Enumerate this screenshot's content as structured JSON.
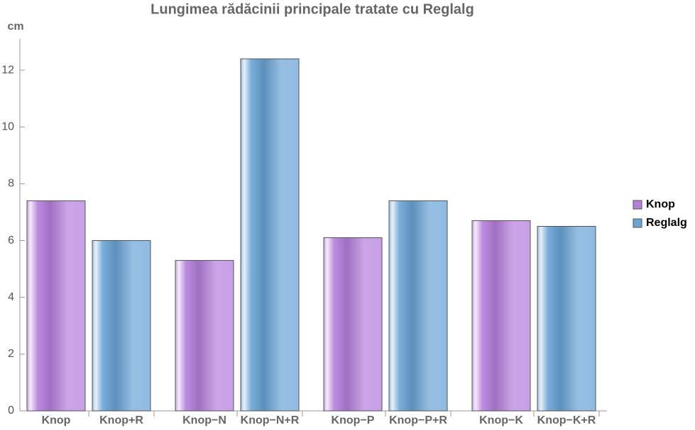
{
  "chart_data": {
    "type": "bar",
    "title": "Lungimea rădăcinii principale tratate cu Reglalg",
    "y_label": "cm",
    "series": [
      {
        "name": "Knop",
        "color": "#b57fdc",
        "labels": [
          "Knop",
          "Knop−N",
          "Knop−P",
          "Knop−K"
        ],
        "values": [
          7.4,
          5.3,
          6.1,
          6.7
        ]
      },
      {
        "name": "Reglalg",
        "color": "#6aa4d6",
        "labels": [
          "Knop+R",
          "Knop−N+R",
          "Knop−P+R",
          "Knop−K+R"
        ],
        "values": [
          6.0,
          12.4,
          7.4,
          6.5
        ]
      }
    ],
    "ylim": [
      0,
      13.1
    ],
    "yticks": [
      0,
      2,
      4,
      6,
      8,
      10,
      12
    ],
    "grid": false,
    "legend": "right"
  }
}
